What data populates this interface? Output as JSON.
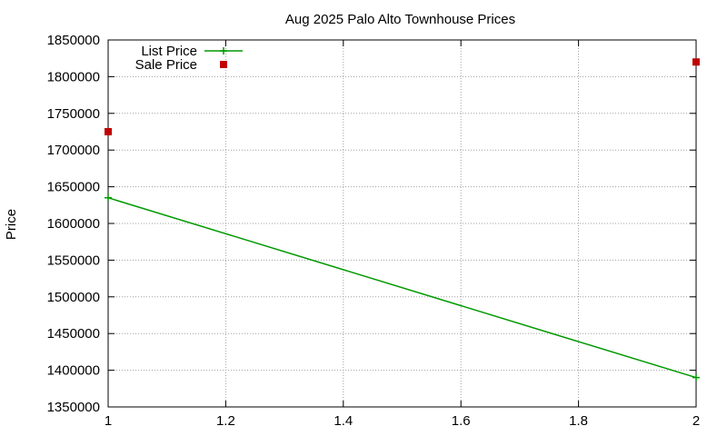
{
  "chart_data": {
    "type": "line",
    "title": "Aug 2025 Palo Alto Townhouse Prices",
    "xlabel": "",
    "ylabel": "Price",
    "xlim": [
      1,
      2
    ],
    "ylim": [
      1350000,
      1850000
    ],
    "x_ticks": [
      "1",
      "1.2",
      "1.4",
      "1.6",
      "1.8",
      "2"
    ],
    "x_tick_values": [
      1,
      1.2,
      1.4,
      1.6,
      1.8,
      2
    ],
    "y_ticks": [
      "1350000",
      "1400000",
      "1450000",
      "1500000",
      "1550000",
      "1600000",
      "1650000",
      "1700000",
      "1750000",
      "1800000",
      "1850000"
    ],
    "y_tick_values": [
      1350000,
      1400000,
      1450000,
      1500000,
      1550000,
      1600000,
      1650000,
      1700000,
      1750000,
      1800000,
      1850000
    ],
    "grid": true,
    "legend_position": "top-left",
    "series": [
      {
        "name": "List Price",
        "style": "lines+points",
        "marker": "plus",
        "color": "#009900",
        "x": [
          1,
          2
        ],
        "y": [
          1635000,
          1390000
        ]
      },
      {
        "name": "Sale Price",
        "style": "points",
        "marker": "square",
        "color": "#c00000",
        "x": [
          1,
          2
        ],
        "y": [
          1725000,
          1820000
        ]
      }
    ]
  }
}
